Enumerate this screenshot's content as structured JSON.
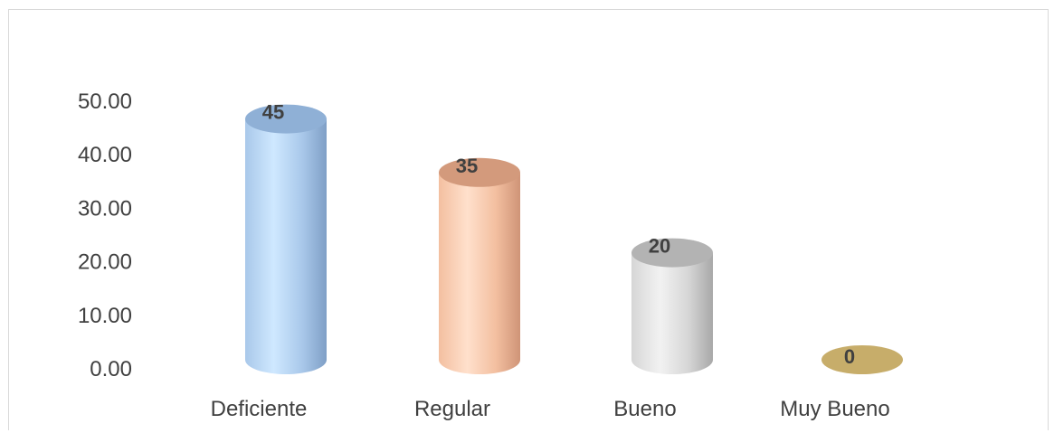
{
  "chart_data": {
    "type": "bar",
    "title": "",
    "xlabel": "",
    "ylabel": "",
    "categories": [
      "Deficiente",
      "Regular",
      "Bueno",
      "Muy Bueno"
    ],
    "values": [
      45,
      35,
      20,
      0
    ],
    "data_labels": [
      "45",
      "35",
      "20",
      "0"
    ],
    "y_ticks": [
      "0.00",
      "10.00",
      "20.00",
      "30.00",
      "40.00",
      "50.00"
    ],
    "y_tick_values": [
      0,
      10,
      20,
      30,
      40,
      50
    ],
    "ylim": [
      0,
      50
    ],
    "grid": false,
    "legend": "none",
    "bar_style": "3d-cylinder",
    "colors": [
      {
        "light": "#cfe8ff",
        "mid": "#a9c8ea",
        "dark": "#7f9fc6",
        "top": "#8fb0d6"
      },
      {
        "light": "#ffe0cc",
        "mid": "#f3bfa0",
        "dark": "#cf9477",
        "top": "#d39a7c"
      },
      {
        "light": "#f2f2f2",
        "mid": "#d6d6d6",
        "dark": "#a8a8a8",
        "top": "#b3b3b3"
      },
      {
        "light": "#e8d39a",
        "mid": "#cdb36e",
        "dark": "#a8914f",
        "top": "#c7ad6a"
      }
    ]
  }
}
